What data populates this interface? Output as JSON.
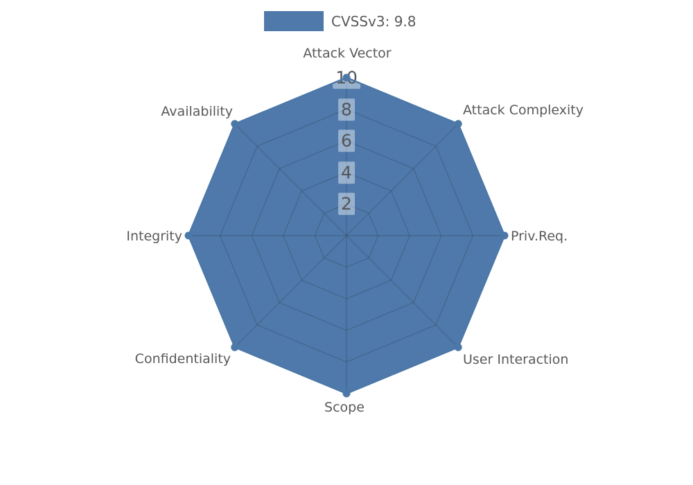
{
  "page": {
    "background": "#ffffff"
  },
  "chart_data": {
    "type": "radar",
    "title": "",
    "legend": {
      "position": "top-center",
      "entries": [
        {
          "label": "CVSSv3: 9.8",
          "swatch_color": "#4f79ab"
        }
      ]
    },
    "categories": [
      "Attack Vector",
      "Attack Complexity",
      "Priv.Req.",
      "User Interaction",
      "Scope",
      "Confidentiality",
      "Integrity",
      "Availability"
    ],
    "series": [
      {
        "name": "CVSSv3: 9.8",
        "color": "#4c78a8",
        "fill_color": "#3b6aa1",
        "fill_opacity": 0.9,
        "values": [
          10,
          10,
          10,
          10,
          10,
          10,
          10,
          10
        ]
      }
    ],
    "radial_axis": {
      "ticks": [
        2,
        4,
        6,
        8,
        10
      ],
      "range": [
        0,
        10
      ],
      "tick_label_color": "#51565c",
      "tick_label_bg": "rgba(255,255,255,0.42)"
    },
    "angular_axis": {
      "start": "top",
      "direction": "clockwise"
    },
    "grid": {
      "shape": "polygon",
      "color": "rgba(45,55,70,0.28)",
      "rings": 5
    },
    "axis_label_color": "#595959"
  }
}
